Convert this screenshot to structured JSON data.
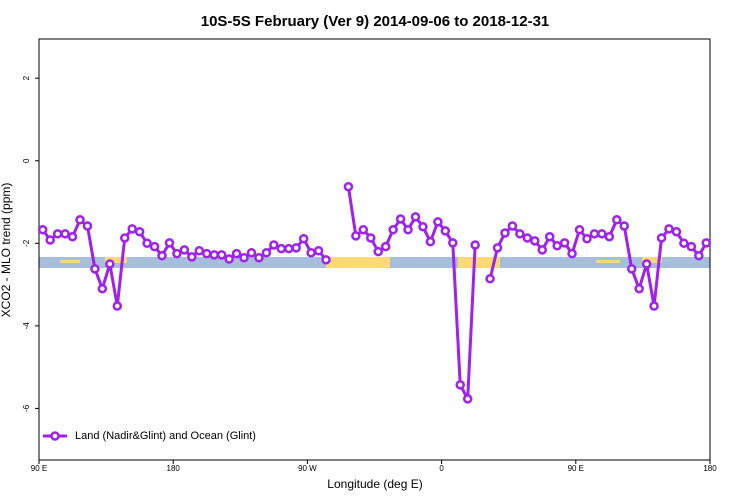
{
  "chart_data": {
    "type": "line",
    "title": "10S-5S February (Ver 9)   2014-09-06 to 2018-12-31",
    "x_label": "Longitude (deg E)",
    "y_label": "XCO2 - MLO trend (ppm)",
    "xlim": [
      90,
      540
    ],
    "ylim": [
      -7.25,
      2.95
    ],
    "xticks": [
      {
        "value": 90,
        "label": "90 E"
      },
      180,
      {
        "value": 270,
        "label": "90 W"
      },
      {
        "value": 360,
        "label": "0"
      },
      {
        "value": 450,
        "label": "90 E"
      },
      {
        "value": 540,
        "label": "180"
      }
    ],
    "yticks": [
      -6,
      -4,
      -2,
      0,
      2
    ],
    "legend": "bottom-left",
    "x": [
      92.5,
      97.5,
      102.5,
      107.5,
      112.5,
      117.5,
      122.5,
      127.5,
      132.5,
      137.5,
      142.5,
      147.5,
      152.5,
      157.5,
      162.5,
      167.5,
      172.5,
      177.5,
      182.5,
      187.5,
      192.5,
      197.5,
      202.5,
      207.5,
      212.5,
      217.5,
      222.5,
      227.5,
      232.5,
      237.5,
      242.5,
      247.5,
      252.5,
      257.5,
      262.5,
      267.5,
      272.5,
      277.5,
      282.5,
      287.5,
      292.5,
      297.5,
      302.5,
      307.5,
      312.5,
      317.5,
      322.5,
      327.5,
      332.5,
      337.5,
      342.5,
      347.5,
      352.5,
      357.5,
      362.5,
      367.5,
      372.5,
      377.5,
      382.5,
      387.5,
      392.5,
      397.5,
      402.5,
      407.5,
      412.5,
      417.5,
      422.5,
      427.5,
      432.5,
      437.5,
      442.5,
      447.5,
      452.5,
      457.5,
      462.5,
      467.5,
      472.5,
      477.5,
      482.5,
      487.5,
      492.5,
      497.5,
      502.5,
      507.5,
      512.5,
      517.5,
      522.5,
      527.5,
      532.5,
      537.5
    ],
    "series": [
      {
        "name": "Land (Nadir&Glint) and Ocean (Glint)",
        "color": "#a020f0",
        "values": [
          -1.67,
          -1.92,
          -1.77,
          -1.77,
          -1.84,
          -1.43,
          -1.58,
          -2.62,
          -3.1,
          -2.5,
          -3.52,
          -1.87,
          -1.65,
          -1.72,
          -2.0,
          -2.08,
          -2.3,
          -1.99,
          -2.25,
          -2.16,
          -2.33,
          -2.18,
          -2.25,
          -2.28,
          -2.28,
          -2.38,
          -2.25,
          -2.35,
          -2.23,
          -2.35,
          -2.23,
          -2.04,
          -2.13,
          -2.13,
          -2.11,
          -1.89,
          -2.23,
          -2.18,
          -2.4,
          null,
          null,
          -0.63,
          -1.82,
          -1.67,
          -1.87,
          -2.2,
          -2.08,
          -1.67,
          -1.41,
          -1.67,
          -1.36,
          -1.6,
          -1.96,
          -1.48,
          -1.7,
          -1.99,
          -5.43,
          -5.77,
          -2.04,
          null,
          -2.86,
          -2.11,
          -1.75,
          -1.58,
          -1.77,
          -1.87,
          -1.94,
          -2.16,
          -1.84,
          -2.06,
          -1.99,
          -2.25,
          -1.67,
          -1.89,
          -1.77,
          -1.77,
          -1.84,
          -1.43,
          -1.58,
          -2.62,
          -3.1,
          -2.5,
          -3.52,
          -1.87,
          -1.65,
          -1.72,
          -2.0,
          -2.08,
          -2.3,
          -1.99
        ]
      }
    ]
  }
}
